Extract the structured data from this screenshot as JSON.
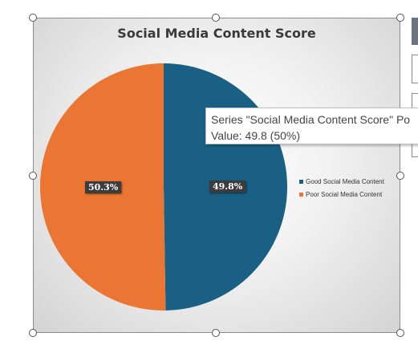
{
  "chart_data": {
    "type": "pie",
    "title": "Social Media Content Score",
    "categories": [
      "Good Social Media Content",
      "Poor Social Media Content"
    ],
    "values": [
      49.8,
      50.3
    ],
    "percent_labels": [
      "49.8%",
      "50.3%"
    ],
    "colors": [
      "#1a5f84",
      "#eb7533"
    ],
    "legend_position": "right"
  },
  "tooltip": {
    "line1": "Series \"Social Media Content Score\" Po",
    "line2": "Value: 49.8 (50%)"
  }
}
